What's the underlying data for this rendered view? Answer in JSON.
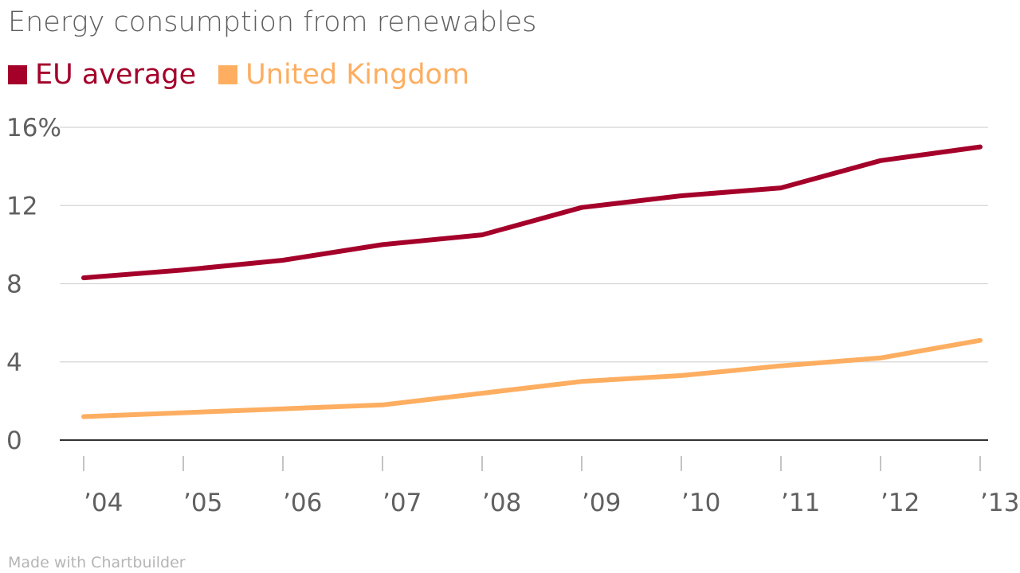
{
  "chart_data": {
    "type": "line",
    "title": "Energy consumption from renewables",
    "xlabel": "",
    "ylabel": "",
    "categories": [
      "’04",
      "’05",
      "’06",
      "’07",
      "’08",
      "’09",
      "’10",
      "’11",
      "’12",
      "’13"
    ],
    "y_ticks": [
      "0",
      "4",
      "8",
      "12",
      "16%"
    ],
    "ylim": [
      0,
      16
    ],
    "grid": true,
    "legend_position": "top-left",
    "series": [
      {
        "name": "EU average",
        "color": "#a4002a",
        "values": [
          8.3,
          8.7,
          9.2,
          10.0,
          10.5,
          11.9,
          12.5,
          12.9,
          14.3,
          15.0
        ]
      },
      {
        "name": "United Kingdom",
        "color": "#fdae61",
        "values": [
          1.2,
          1.4,
          1.6,
          1.8,
          2.4,
          3.0,
          3.3,
          3.8,
          4.2,
          5.1
        ]
      }
    ]
  },
  "footer": {
    "credit": "Made with Chartbuilder"
  }
}
